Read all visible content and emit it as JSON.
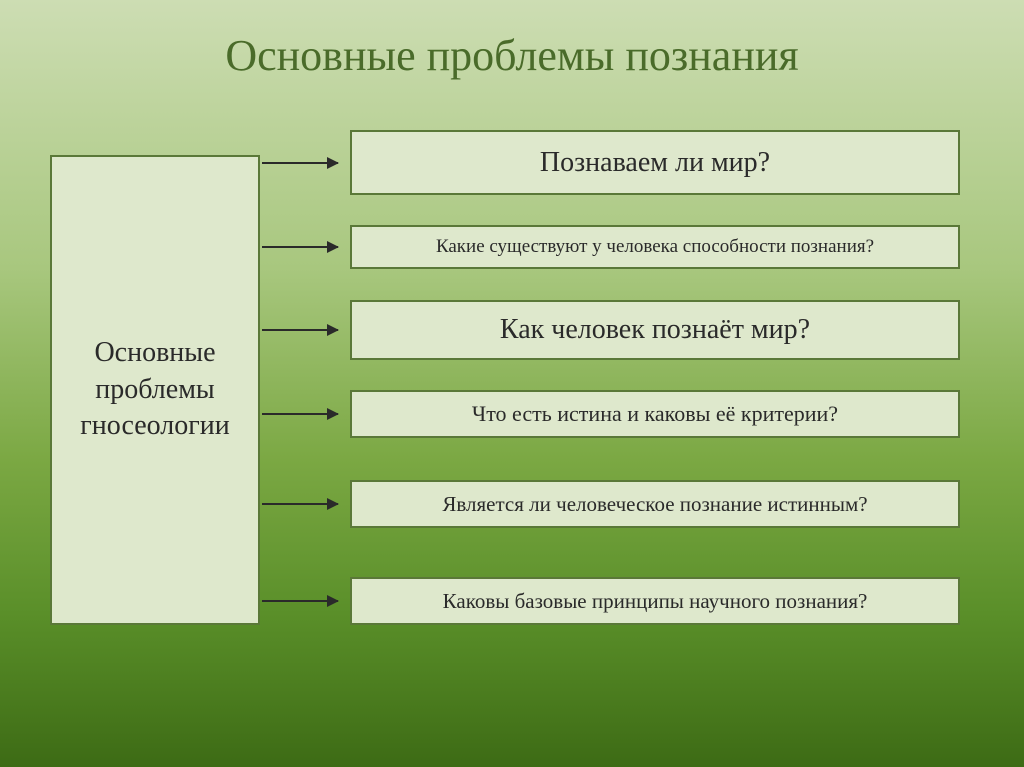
{
  "title": "Основные проблемы познания",
  "diagram": {
    "type": "flowchart",
    "background_gradient": [
      "#cdddb3",
      "#a8c77e",
      "#7ba843",
      "#5a8f29",
      "#3d6b15"
    ],
    "box_fill": "#dee8cc",
    "box_border": "#5a7838",
    "arrow_color": "#2a2a2a",
    "title_color": "#4a6b2a",
    "title_fontsize": 44,
    "main_box": {
      "text": "Основные проблемы гносеологии",
      "fontsize": 28
    },
    "items": [
      {
        "text": "Познаваем ли мир?",
        "fontsize": 28
      },
      {
        "text": "Какие существуют у человека способности познания?",
        "fontsize": 19
      },
      {
        "text": "Как человек познаёт мир?",
        "fontsize": 28
      },
      {
        "text": "Что есть истина и каковы её критерии?",
        "fontsize": 22
      },
      {
        "text": "Является ли человеческое познание истинным?",
        "fontsize": 21
      },
      {
        "text": "Каковы базовые принципы научного познания?",
        "fontsize": 21
      }
    ]
  }
}
